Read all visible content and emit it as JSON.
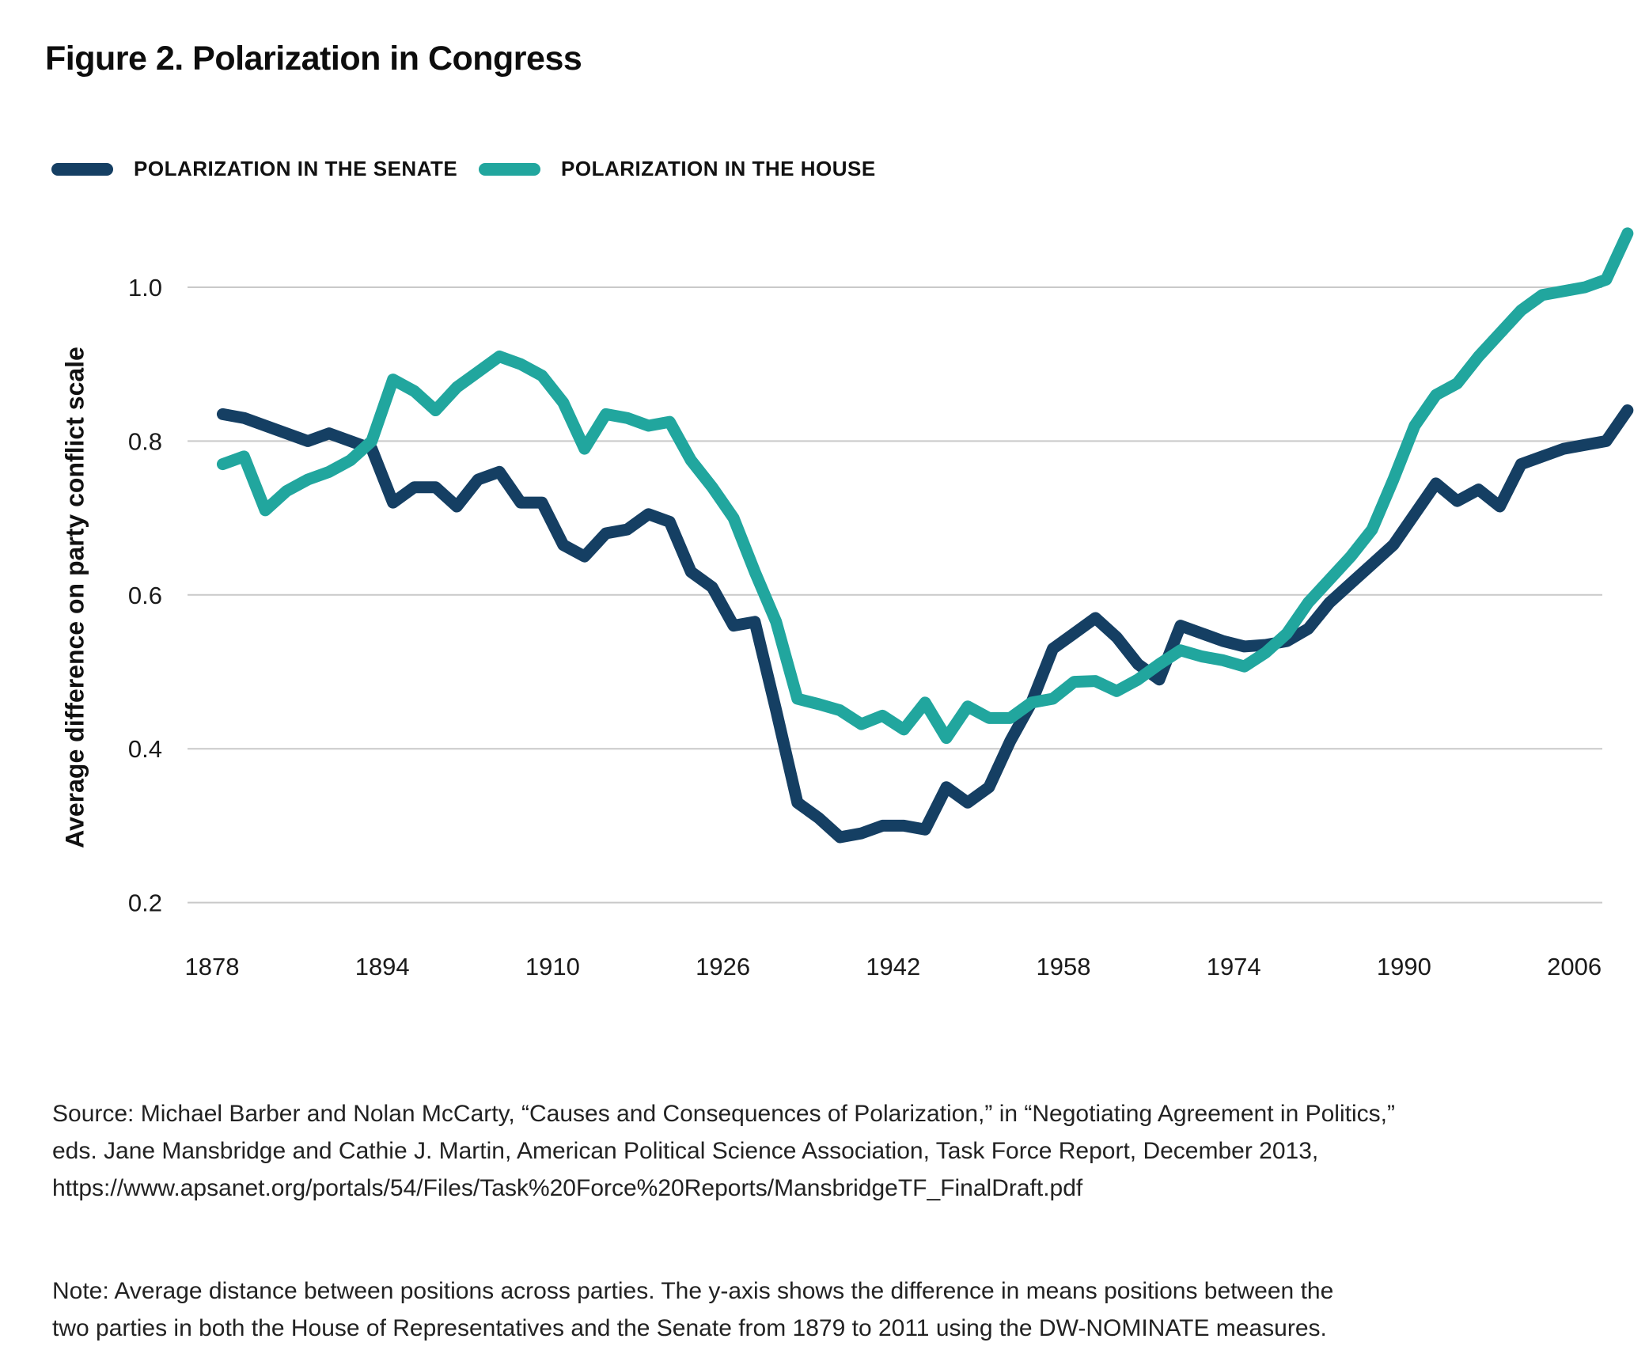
{
  "figure": {
    "title": "Figure 2. Polarization in Congress",
    "source_lines": [
      "Source: Michael Barber and Nolan McCarty, “Causes and Consequences of Polarization,” in “Negotiating Agreement in Politics,”",
      "eds. Jane Mansbridge and Cathie J. Martin, American Political Science Association, Task Force Report, December 2013,",
      "https://www.apsanet.org/portals/54/Files/Task%20Force%20Reports/MansbridgeTF_FinalDraft.pdf"
    ],
    "note_lines": [
      "Note: Average distance between positions across parties. The y-axis shows the difference in means positions between the",
      "two parties in both the House of Representatives and the Senate from 1879 to 2011 using the DW-NOMINATE measures."
    ]
  },
  "legend": [
    {
      "label": "POLARIZATION IN THE SENATE",
      "color": "#153F63"
    },
    {
      "label": "POLARIZATION IN THE HOUSE",
      "color": "#21A69E"
    }
  ],
  "colors": {
    "senate_line": "#153F63",
    "house_line": "#21A69E",
    "gridline": "#c9c9c9",
    "text": "#1b1b1b",
    "background": "#ffffff"
  },
  "chart_data": {
    "type": "line",
    "title": "Figure 2. Polarization in Congress",
    "xlabel": "",
    "ylabel": "Average difference on party conflict scale",
    "x": [
      1879,
      1881,
      1883,
      1885,
      1887,
      1889,
      1891,
      1893,
      1895,
      1897,
      1899,
      1901,
      1903,
      1905,
      1907,
      1909,
      1911,
      1913,
      1915,
      1917,
      1919,
      1921,
      1923,
      1925,
      1927,
      1929,
      1931,
      1933,
      1935,
      1937,
      1939,
      1941,
      1943,
      1945,
      1947,
      1949,
      1951,
      1953,
      1955,
      1957,
      1959,
      1961,
      1963,
      1965,
      1967,
      1969,
      1971,
      1973,
      1975,
      1977,
      1979,
      1981,
      1983,
      1985,
      1987,
      1989,
      1991,
      1993,
      1995,
      1997,
      1999,
      2001,
      2003,
      2005,
      2007,
      2009,
      2011
    ],
    "series": [
      {
        "name": "Polarization in the Senate",
        "color": "#153F63",
        "values": [
          0.835,
          0.83,
          0.82,
          0.81,
          0.8,
          0.81,
          0.8,
          0.79,
          0.72,
          0.74,
          0.74,
          0.715,
          0.75,
          0.76,
          0.72,
          0.72,
          0.665,
          0.65,
          0.68,
          0.685,
          0.705,
          0.695,
          0.63,
          0.61,
          0.56,
          0.565,
          0.45,
          0.33,
          0.31,
          0.285,
          0.29,
          0.3,
          0.3,
          0.295,
          0.35,
          0.33,
          0.35,
          0.41,
          0.46,
          0.53,
          0.55,
          0.57,
          0.545,
          0.51,
          0.49,
          0.56,
          0.55,
          0.54,
          0.533,
          0.535,
          0.54,
          0.556,
          0.59,
          0.615,
          0.64,
          0.665,
          0.705,
          0.745,
          0.722,
          0.737,
          0.715,
          0.77,
          0.78,
          0.79,
          0.795,
          0.8,
          0.84
        ]
      },
      {
        "name": "Polarization in the House",
        "color": "#21A69E",
        "values": [
          0.77,
          0.78,
          0.71,
          0.735,
          0.75,
          0.76,
          0.775,
          0.8,
          0.88,
          0.865,
          0.84,
          0.87,
          0.89,
          0.91,
          0.9,
          0.885,
          0.85,
          0.79,
          0.835,
          0.83,
          0.82,
          0.825,
          0.775,
          0.74,
          0.7,
          0.63,
          0.565,
          0.465,
          0.458,
          0.45,
          0.432,
          0.443,
          0.425,
          0.46,
          0.414,
          0.455,
          0.44,
          0.44,
          0.46,
          0.465,
          0.487,
          0.488,
          0.475,
          0.49,
          0.51,
          0.528,
          0.52,
          0.515,
          0.507,
          0.525,
          0.55,
          0.59,
          0.62,
          0.65,
          0.685,
          0.75,
          0.82,
          0.86,
          0.875,
          0.91,
          0.94,
          0.97,
          0.99,
          0.995,
          1.0,
          1.01,
          1.07
        ]
      }
    ],
    "xticks": [
      1878,
      1894,
      1910,
      1926,
      1942,
      1958,
      1974,
      1990,
      2006
    ],
    "yticks": [
      0.2,
      0.4,
      0.6,
      0.8,
      1.0
    ],
    "xlim": [
      1878,
      2011
    ],
    "ylim": [
      0.13,
      1.15
    ],
    "grid": "horizontal",
    "legend_position": "top-left"
  }
}
